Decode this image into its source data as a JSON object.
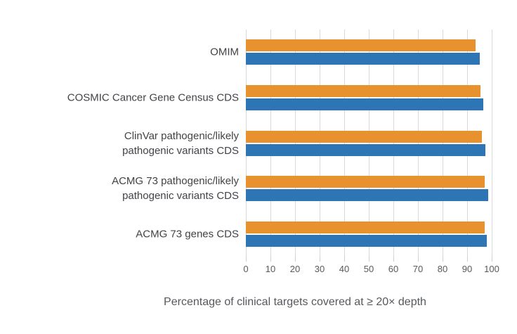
{
  "chart_data": {
    "type": "bar",
    "orientation": "horizontal",
    "title": "",
    "xlabel": "Percentage of clinical targets covered at ≥ 20× depth",
    "ylabel": "",
    "xlim": [
      0,
      100
    ],
    "xticks": [
      0,
      10,
      20,
      30,
      40,
      50,
      60,
      70,
      80,
      90,
      100
    ],
    "grid": true,
    "legend_position": "none",
    "categories": [
      "OMIM",
      "COSMIC Cancer Gene Census CDS",
      "ClinVar pathogenic/likely pathogenic variants CDS",
      "ACMG 73 pathogenic/likely pathogenic variants CDS",
      "ACMG 73 genes CDS"
    ],
    "category_display_lines": [
      [
        "OMIM"
      ],
      [
        "COSMIC Cancer Gene Census CDS"
      ],
      [
        "ClinVar pathogenic/likely",
        "pathogenic variants CDS"
      ],
      [
        "ACMG 73 pathogenic/likely",
        "pathogenic variants CDS"
      ],
      [
        "ACMG 73 genes CDS"
      ]
    ],
    "series": [
      {
        "name": "orange",
        "color": "#E8912F",
        "values": [
          93.5,
          95.5,
          96.0,
          97.0,
          97.0
        ]
      },
      {
        "name": "blue",
        "color": "#2E75B6",
        "values": [
          95.0,
          96.5,
          97.5,
          98.5,
          98.0
        ]
      }
    ]
  },
  "axis": {
    "tick_labels": [
      "0",
      "10",
      "20",
      "30",
      "40",
      "50",
      "60",
      "70",
      "80",
      "90",
      "100"
    ],
    "title": "Percentage of clinical targets covered at ≥ 20× depth"
  },
  "colors": {
    "bar_orange": "#E8912F",
    "bar_blue": "#2E75B6",
    "grid": "#d9d9d9",
    "tick_text": "#595959",
    "label_text": "#414347",
    "background": "#ffffff"
  }
}
